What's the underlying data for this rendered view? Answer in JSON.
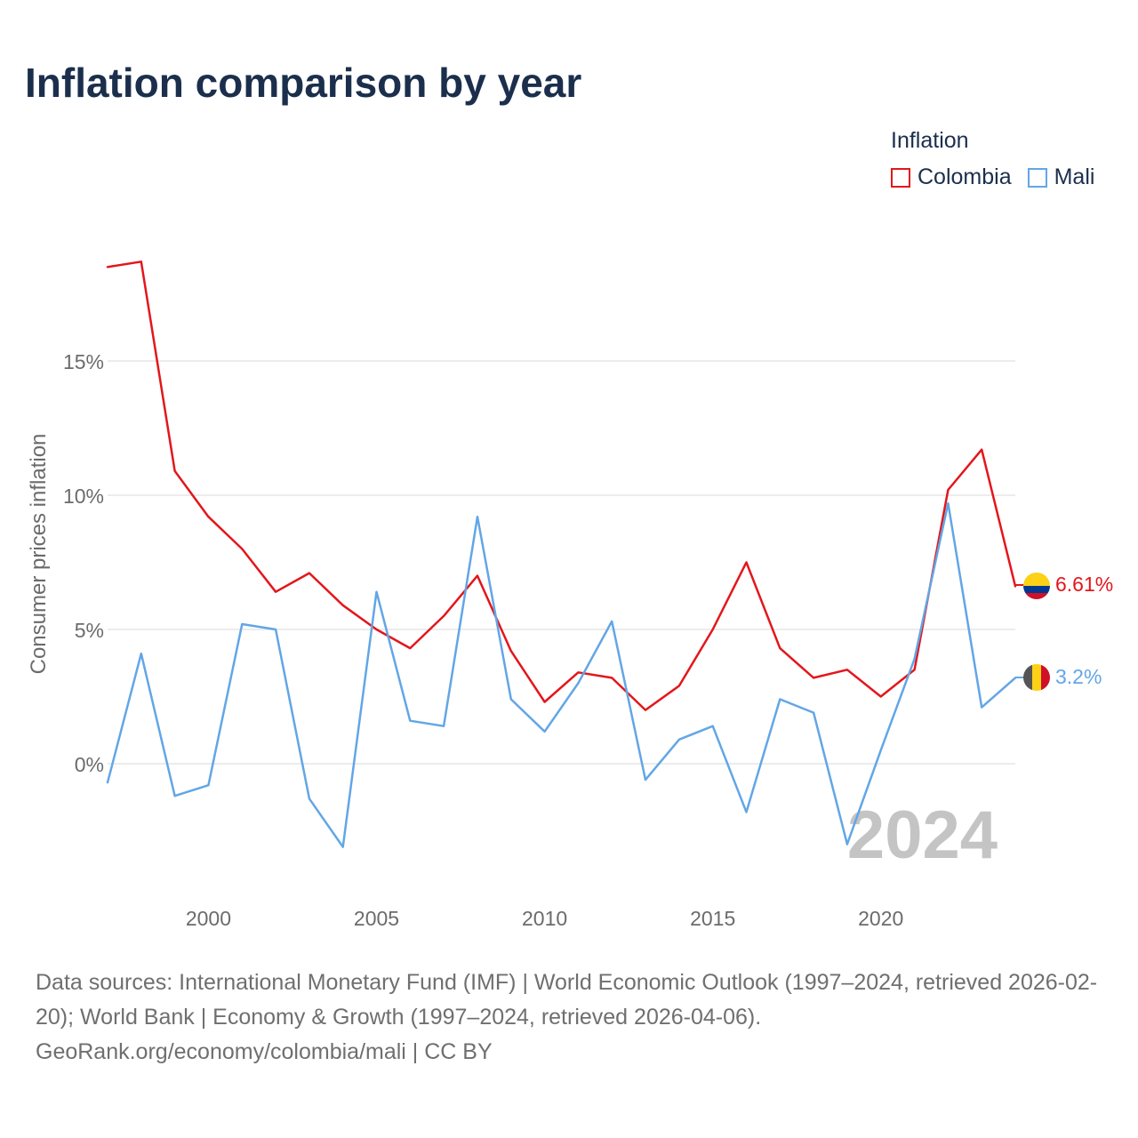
{
  "title": "Inflation comparison by year",
  "legend": {
    "title": "Inflation",
    "entries": [
      "Colombia",
      "Mali"
    ]
  },
  "colors": {
    "title": "#1b2f4d",
    "colombia": "#e3161b",
    "mali": "#62a6e6",
    "grid": "#e6e6e6",
    "axis_text": "#6b6b6b",
    "year_watermark": "#c4c4c4",
    "footer": "#6f6f6f"
  },
  "year_label": "2024",
  "end_labels": {
    "colombia": "6.61%",
    "mali": "3.2%"
  },
  "footer": {
    "sources": "Data sources: International Monetary Fund (IMF) | World Economic Outlook (1997–2024, retrieved 2026-02-20); World Bank | Economy & Growth (1997–2024, retrieved 2026-04-06).",
    "credit": "GeoRank.org/economy/colombia/mali | CC BY"
  },
  "chart_data": {
    "type": "line",
    "title": "Inflation comparison by year",
    "xlabel": "",
    "ylabel": "Consumer prices inflation",
    "x": [
      1997,
      1998,
      1999,
      2000,
      2001,
      2002,
      2003,
      2004,
      2005,
      2006,
      2007,
      2008,
      2009,
      2010,
      2011,
      2012,
      2013,
      2014,
      2015,
      2016,
      2017,
      2018,
      2019,
      2020,
      2021,
      2022,
      2023,
      2024
    ],
    "xlim": [
      1997,
      2024
    ],
    "ylim": [
      -4.5,
      19
    ],
    "x_ticks": [
      2000,
      2005,
      2010,
      2015,
      2020
    ],
    "x_tick_labels": [
      "2000",
      "2005",
      "2010",
      "2015",
      "2020"
    ],
    "y_ticks": [
      0,
      5,
      10,
      15
    ],
    "y_tick_labels": [
      "0%",
      "5%",
      "10%",
      "15%"
    ],
    "grid": true,
    "legend_position": "top-right",
    "series": [
      {
        "name": "Colombia",
        "values": [
          18.5,
          18.7,
          10.9,
          9.2,
          8.0,
          6.4,
          7.1,
          5.9,
          5.0,
          4.3,
          5.5,
          7.0,
          4.2,
          2.3,
          3.4,
          3.2,
          2.0,
          2.9,
          5.0,
          7.5,
          4.3,
          3.2,
          3.5,
          2.5,
          3.5,
          10.2,
          11.7,
          6.61
        ]
      },
      {
        "name": "Mali",
        "values": [
          -0.7,
          4.1,
          -1.2,
          -0.8,
          5.2,
          5.0,
          -1.3,
          -3.1,
          6.4,
          1.6,
          1.4,
          9.2,
          2.4,
          1.2,
          3.0,
          5.3,
          -0.6,
          0.9,
          1.4,
          -1.8,
          2.4,
          1.9,
          -3.0,
          0.5,
          3.9,
          9.7,
          2.1,
          3.2
        ]
      }
    ]
  }
}
